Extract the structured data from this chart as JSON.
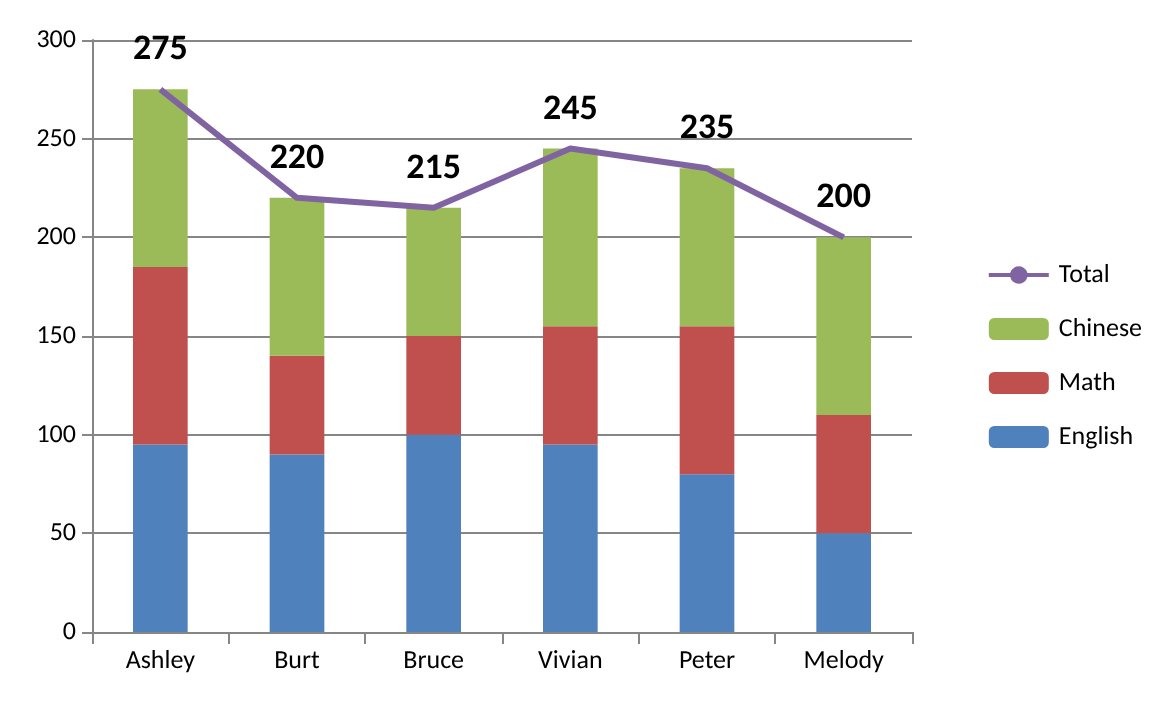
{
  "chart_data": {
    "type": "bar",
    "stacked": true,
    "categories": [
      "Ashley",
      "Burt",
      "Bruce",
      "Vivian",
      "Peter",
      "Melody"
    ],
    "series": [
      {
        "name": "English",
        "color": "#4f81bd",
        "values": [
          95,
          90,
          100,
          95,
          80,
          50
        ]
      },
      {
        "name": "Math",
        "color": "#c0504d",
        "values": [
          90,
          50,
          50,
          60,
          75,
          60
        ]
      },
      {
        "name": "Chinese",
        "color": "#9bbb59",
        "values": [
          90,
          80,
          65,
          90,
          80,
          90
        ]
      },
      {
        "name": "Total",
        "type": "line",
        "color": "#8064a2",
        "values": [
          275,
          220,
          215,
          245,
          235,
          200
        ],
        "value_labels": [
          "275",
          "220",
          "215",
          "245",
          "235",
          "200"
        ]
      }
    ],
    "ylim": [
      0,
      300
    ],
    "yticks": [
      0,
      50,
      100,
      150,
      200,
      250,
      300
    ],
    "grid": "y",
    "legend": "right",
    "marker": "none"
  }
}
